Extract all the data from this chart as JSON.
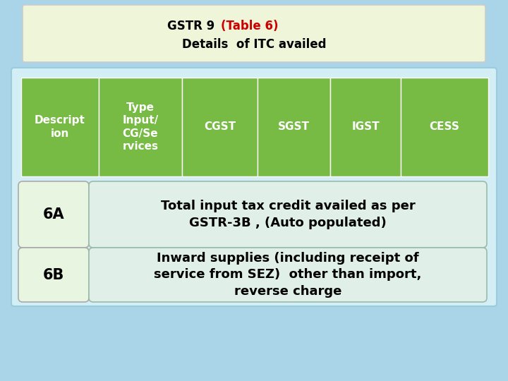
{
  "title_part1": "GSTR 9 ",
  "title_part2": "(Table 6)",
  "title_part3": "Details  of ITC availed",
  "title_color1": "#000000",
  "title_color2": "#cc0000",
  "header_cols": [
    "Descript\nion",
    "Type\nInput/\nCG/Se\nrvices",
    "CGST",
    "SGST",
    "IGST",
    "CESS"
  ],
  "header_bg": "#77bb44",
  "header_text_color": "#ffffff",
  "row_6a_label": "6A",
  "row_6a_text": "Total input tax credit availed as per\nGSTR-3B , (Auto populated)",
  "row_6b_label": "6B",
  "row_6b_text": "Inward supplies (including receipt of\nservice from SEZ)  other than import,\nreverse charge",
  "outer_bg": "#d4eef5",
  "title_box_bg": "#eef5d8",
  "slide_bg": "#aad4e8",
  "row_text_color": "#000000",
  "row_label_border": "#aaaaaa",
  "row_label_bg": "#e8f5e0",
  "row_box_bg": "#e0f0e8",
  "row_box_border": "#99bbaa",
  "header_border": "#ffffff",
  "title_box_border": "#cccccc",
  "outer_border": "#99ccdd"
}
